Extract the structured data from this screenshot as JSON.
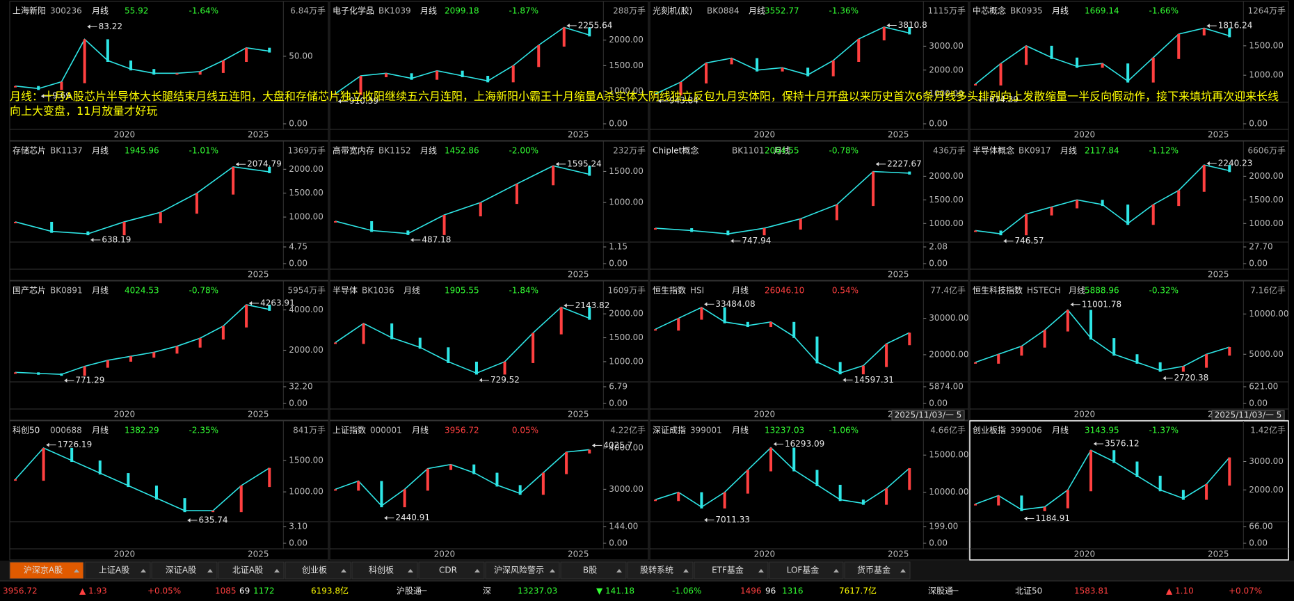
{
  "annotation": "月线：十月A股芯片半导体大长腿结束月线五连阳，大盘和存储芯片独立收阳继续五六月连阳，上海新阳小霸王十月缩量A杀实体大阴线独立反包九月实体阳，保持十月开盘以来历史首次6条月线多头排列向上发散缩量一半反向假动作，接下来填坑再次迎来长线向上大变盘，11月放量才好玩",
  "panels": [
    {
      "name": "上海新阳",
      "code": "300236",
      "period": "月线",
      "price": "55.92",
      "change": "-1.64%",
      "volume": "6.84万手",
      "yticks": [
        "50.00"
      ],
      "vticks": [
        "0.00"
      ],
      "high": 83.22,
      "low": 9.69,
      "xlabels": [
        "2020",
        "2025"
      ],
      "ylim": [
        0,
        90
      ],
      "closes": [
        15,
        12,
        20,
        70,
        45,
        35,
        30,
        30,
        32,
        45,
        60,
        56
      ]
    },
    {
      "name": "电子化学品",
      "code": "BK1039",
      "period": "月线",
      "price": "2099.18",
      "change": "-1.87%",
      "volume": "288万手",
      "yticks": [
        "2000.00",
        "1500.00",
        "1000.00"
      ],
      "vticks": [
        "0.00"
      ],
      "high": 2255.64,
      "low": 910.39,
      "xlabels": [
        "2025"
      ],
      "ylim": [
        850,
        2350
      ],
      "closes": [
        950,
        1300,
        1350,
        1250,
        1400,
        1300,
        1200,
        1500,
        1900,
        2250,
        2100
      ]
    },
    {
      "name": "光刻机(胶)",
      "code": "BK0884",
      "period": "月线",
      "price": "3552.77",
      "change": "-1.36%",
      "volume": "1115万手",
      "yticks": [
        "3000.00",
        "2000.00",
        "1000.00"
      ],
      "vticks": [
        "0.00"
      ],
      "high": 3810.8,
      "low": 943.84,
      "xlabels": [
        "2020",
        "2025"
      ],
      "ylim": [
        800,
        4000
      ],
      "closes": [
        1000,
        1500,
        2300,
        2500,
        2000,
        2100,
        1800,
        2400,
        3300,
        3800,
        3550
      ]
    },
    {
      "name": "中芯概念",
      "code": "BK0935",
      "period": "月线",
      "price": "1669.14",
      "change": "-1.66%",
      "volume": "1264万手",
      "yticks": [
        "1500.00",
        "1000.00"
      ],
      "vticks": [
        "0.00"
      ],
      "high": 1816.24,
      "low": 674.39,
      "xlabels": [
        "2020",
        "2025"
      ],
      "ylim": [
        600,
        1900
      ],
      "closes": [
        850,
        1200,
        1500,
        1300,
        1150,
        1200,
        900,
        1300,
        1700,
        1800,
        1670
      ]
    },
    {
      "name": "存储芯片",
      "code": "BK1137",
      "period": "月线",
      "price": "1945.96",
      "change": "-1.01%",
      "volume": "1369万手",
      "yticks": [
        "2000.00",
        "1500.00",
        "1000.00"
      ],
      "vticks": [
        "4.75",
        "0.00"
      ],
      "high": 2074.79,
      "low": 638.19,
      "xlabels": [
        "2025"
      ],
      "ylim": [
        550,
        2150
      ],
      "closes": [
        900,
        700,
        650,
        900,
        1100,
        1500,
        2050,
        1946
      ]
    },
    {
      "name": "高带宽内存",
      "code": "BK1152",
      "period": "月线",
      "price": "1452.86",
      "change": "-2.00%",
      "volume": "232万手",
      "yticks": [
        "1500.00",
        "1000.00"
      ],
      "vticks": [
        "1.15",
        "0.00"
      ],
      "high": 1595.24,
      "low": 487.18,
      "xlabels": [
        "2025"
      ],
      "ylim": [
        420,
        1650
      ],
      "closes": [
        700,
        550,
        500,
        800,
        1000,
        1300,
        1590,
        1453
      ]
    },
    {
      "name": "Chiplet概念",
      "code": "BK1101",
      "period": "月线",
      "price": "2064.55",
      "change": "-0.78%",
      "volume": "436万手",
      "yticks": [
        "2000.00",
        "1500.00",
        "1000.00"
      ],
      "vticks": [
        "2.08",
        "0.00"
      ],
      "high": 2227.67,
      "low": 747.94,
      "xlabels": [
        "2025"
      ],
      "ylim": [
        680,
        2300
      ],
      "closes": [
        900,
        850,
        780,
        900,
        1100,
        1400,
        2100,
        2065
      ]
    },
    {
      "name": "半导体概念",
      "code": "BK0917",
      "period": "月线",
      "price": "2117.84",
      "change": "-1.12%",
      "volume": "6606万手",
      "yticks": [
        "2000.00",
        "1500.00",
        "1000.00"
      ],
      "vticks": [
        "27.70",
        "0.00"
      ],
      "high": 2240.23,
      "low": 746.57,
      "xlabels": [
        "2025"
      ],
      "ylim": [
        680,
        2300
      ],
      "closes": [
        850,
        780,
        1200,
        1350,
        1500,
        1400,
        1000,
        1400,
        1700,
        2240,
        2118
      ]
    },
    {
      "name": "国产芯片",
      "code": "BK0891",
      "period": "月线",
      "price": "4024.53",
      "change": "-0.78%",
      "volume": "5954万手",
      "yticks": [
        "4000.00",
        "2000.00"
      ],
      "vticks": [
        "32.20",
        "0.00"
      ],
      "high": 4263.91,
      "low": 771.29,
      "xlabels": [
        "2020",
        "2025"
      ],
      "ylim": [
        600,
        4400
      ],
      "closes": [
        900,
        850,
        800,
        1200,
        1500,
        1700,
        1900,
        2200,
        2600,
        3200,
        4260,
        4025
      ]
    },
    {
      "name": "半导体",
      "code": "BK1036",
      "period": "月线",
      "price": "1905.55",
      "change": "-1.84%",
      "volume": "1609万手",
      "yticks": [
        "2000.00",
        "1500.00",
        "1000.00"
      ],
      "vticks": [
        "6.79",
        "0.00"
      ],
      "high": 2143.82,
      "low": 729.52,
      "xlabels": [
        "2025"
      ],
      "ylim": [
        650,
        2250
      ],
      "closes": [
        1400,
        1800,
        1500,
        1300,
        1000,
        760,
        1000,
        1600,
        2140,
        1906
      ]
    },
    {
      "name": "恒生指数",
      "code": "HSI",
      "period": "月线",
      "price": "26046.10",
      "change": "0.54%",
      "volume": "77.4亿手",
      "yticks": [
        "30000.00",
        "20000.00"
      ],
      "vticks": [
        "5874.00",
        "0.00"
      ],
      "high": 33484.08,
      "low": 14597.31,
      "xlabels": [
        "2020",
        "2025"
      ],
      "ylim": [
        13500,
        34500
      ],
      "closes": [
        27000,
        30000,
        33000,
        29000,
        28000,
        29000,
        25000,
        18000,
        15000,
        17000,
        23000,
        26046
      ],
      "cursor_date": "2025/11/03/一 5"
    },
    {
      "name": "恒生科技指数",
      "code": "HSTECH",
      "period": "月线",
      "price": "5888.96",
      "change": "-0.32%",
      "volume": "7.16亿手",
      "yticks": [
        "10000.00",
        "5000.00"
      ],
      "vticks": [
        "621.00",
        "0.00"
      ],
      "high": 11001.78,
      "low": 2720.38,
      "xlabels": [
        "2020",
        "2025"
      ],
      "ylim": [
        2000,
        11500
      ],
      "closes": [
        4000,
        5000,
        6000,
        8000,
        10500,
        7000,
        5000,
        4000,
        3000,
        3500,
        5000,
        5889
      ],
      "cursor_date": "2025/11/03/一 5"
    },
    {
      "name": "科创50",
      "code": "000688",
      "period": "月线",
      "price": "1382.29",
      "change": "-2.35%",
      "volume": "841万手",
      "yticks": [
        "1500.00",
        "1000.00"
      ],
      "vticks": [
        "3.10",
        "0.00"
      ],
      "high": 1726.19,
      "low": 635.74,
      "xlabels": [
        "2020",
        "2025"
      ],
      "ylim": [
        580,
        1800
      ],
      "closes": [
        1200,
        1700,
        1500,
        1300,
        1100,
        900,
        700,
        700,
        1100,
        1382
      ]
    },
    {
      "name": "上证指数",
      "code": "000001",
      "period": "月线",
      "price": "3956.72",
      "change": "0.05%",
      "volume": "4.22亿手",
      "yticks": [
        "4000.00",
        "3000.00"
      ],
      "vticks": [
        "144.00",
        "0.00"
      ],
      "high": 4025.7,
      "low": 2440.91,
      "xlabels": [
        "2020",
        "2025"
      ],
      "ylim": [
        2300,
        4150
      ],
      "closes": [
        3000,
        3200,
        2600,
        3000,
        3500,
        3600,
        3400,
        3100,
        2900,
        3400,
        3900,
        3957
      ]
    },
    {
      "name": "深证成指",
      "code": "399001",
      "period": "月线",
      "price": "13237.03",
      "change": "-1.06%",
      "volume": "4.66亿手",
      "yticks": [
        "15000.00",
        "10000.00"
      ],
      "vticks": [
        "199.00",
        "0.00"
      ],
      "high": 16293.09,
      "low": 7011.33,
      "xlabels": [
        "2020",
        "2025"
      ],
      "ylim": [
        6500,
        16800
      ],
      "closes": [
        9000,
        10000,
        8000,
        10000,
        13000,
        16000,
        13000,
        11000,
        9000,
        8500,
        10500,
        13237
      ]
    },
    {
      "name": "创业板指",
      "code": "399006",
      "period": "月线",
      "price": "3143.95",
      "change": "-1.37%",
      "volume": "1.42亿手",
      "yticks": [
        "3000.00",
        "2000.00"
      ],
      "vticks": [
        "66.00",
        "0.00"
      ],
      "high": 3576.12,
      "low": 1184.91,
      "xlabels": [
        "2020",
        "2025"
      ],
      "ylim": [
        1000,
        3700
      ],
      "closes": [
        1500,
        1800,
        1300,
        1400,
        2000,
        3400,
        3000,
        2500,
        2000,
        1700,
        2200,
        3144
      ]
    }
  ],
  "tabs": [
    "沪深京A股",
    "上证A股",
    "深证A股",
    "北证A股",
    "创业板",
    "科创板",
    "CDR",
    "沪深风险警示",
    "B股",
    "股转系统",
    "ETF基金",
    "LOF基金",
    "货币基金"
  ],
  "status": [
    {
      "text": "3956.72",
      "color": "#ff4040"
    },
    {
      "text": "▲ 1.93",
      "color": "#ff4040"
    },
    {
      "text": "+0.05%",
      "color": "#ff4040"
    },
    {
      "text": "1085",
      "color": "#ff4040"
    },
    {
      "text": "69",
      "color": "#ffffff"
    },
    {
      "text": "1172",
      "color": "#33ff33"
    },
    {
      "text": "6193.8亿",
      "color": "#ffff00"
    },
    {
      "text": "沪股通",
      "color": "#dddddd"
    },
    {
      "text": "一",
      "color": "#dddddd"
    },
    {
      "text": "深",
      "color": "#dddddd"
    },
    {
      "text": "13237.03",
      "color": "#33ff33"
    },
    {
      "text": "▼ 141.18",
      "color": "#33ff33"
    },
    {
      "text": "-1.06%",
      "color": "#33ff33"
    },
    {
      "text": "1496",
      "color": "#ff4040"
    },
    {
      "text": "96",
      "color": "#ffffff"
    },
    {
      "text": "1316",
      "color": "#33ff33"
    },
    {
      "text": "7617.7亿",
      "color": "#ffff00"
    },
    {
      "text": "深股通",
      "color": "#dddddd"
    },
    {
      "text": "一",
      "color": "#dddddd"
    },
    {
      "text": "北证50",
      "color": "#dddddd"
    },
    {
      "text": "1583.81",
      "color": "#ff4040"
    },
    {
      "text": "▲ 1.10",
      "color": "#ff4040"
    },
    {
      "text": "+0.07%",
      "color": "#ff4040"
    }
  ]
}
